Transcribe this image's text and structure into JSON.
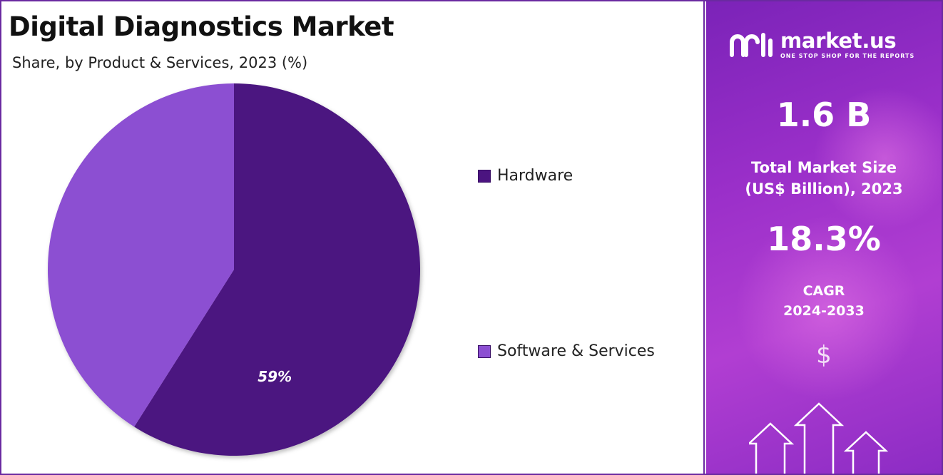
{
  "chart_data": {
    "type": "pie",
    "title": "Digital Diagnostics Market",
    "subtitle": "Share, by Product & Services, 2023 (%)",
    "categories": [
      "Hardware",
      "Software & Services"
    ],
    "values": [
      59,
      41
    ],
    "data_labels": [
      "59%",
      ""
    ],
    "colors": [
      "#4b1480",
      "#8c4fd2"
    ],
    "legend_position": "right"
  },
  "brand": {
    "name": "market.us",
    "tagline": "ONE STOP SHOP FOR THE REPORTS"
  },
  "stats": {
    "market_size_value": "1.6 B",
    "market_size_label_line1": "Total Market Size",
    "market_size_label_line2": "(US$ Billion), 2023",
    "cagr_value": "18.3%",
    "cagr_label_line1": "CAGR",
    "cagr_label_line2": "2024-2033"
  },
  "icons": {
    "currency": "$"
  }
}
